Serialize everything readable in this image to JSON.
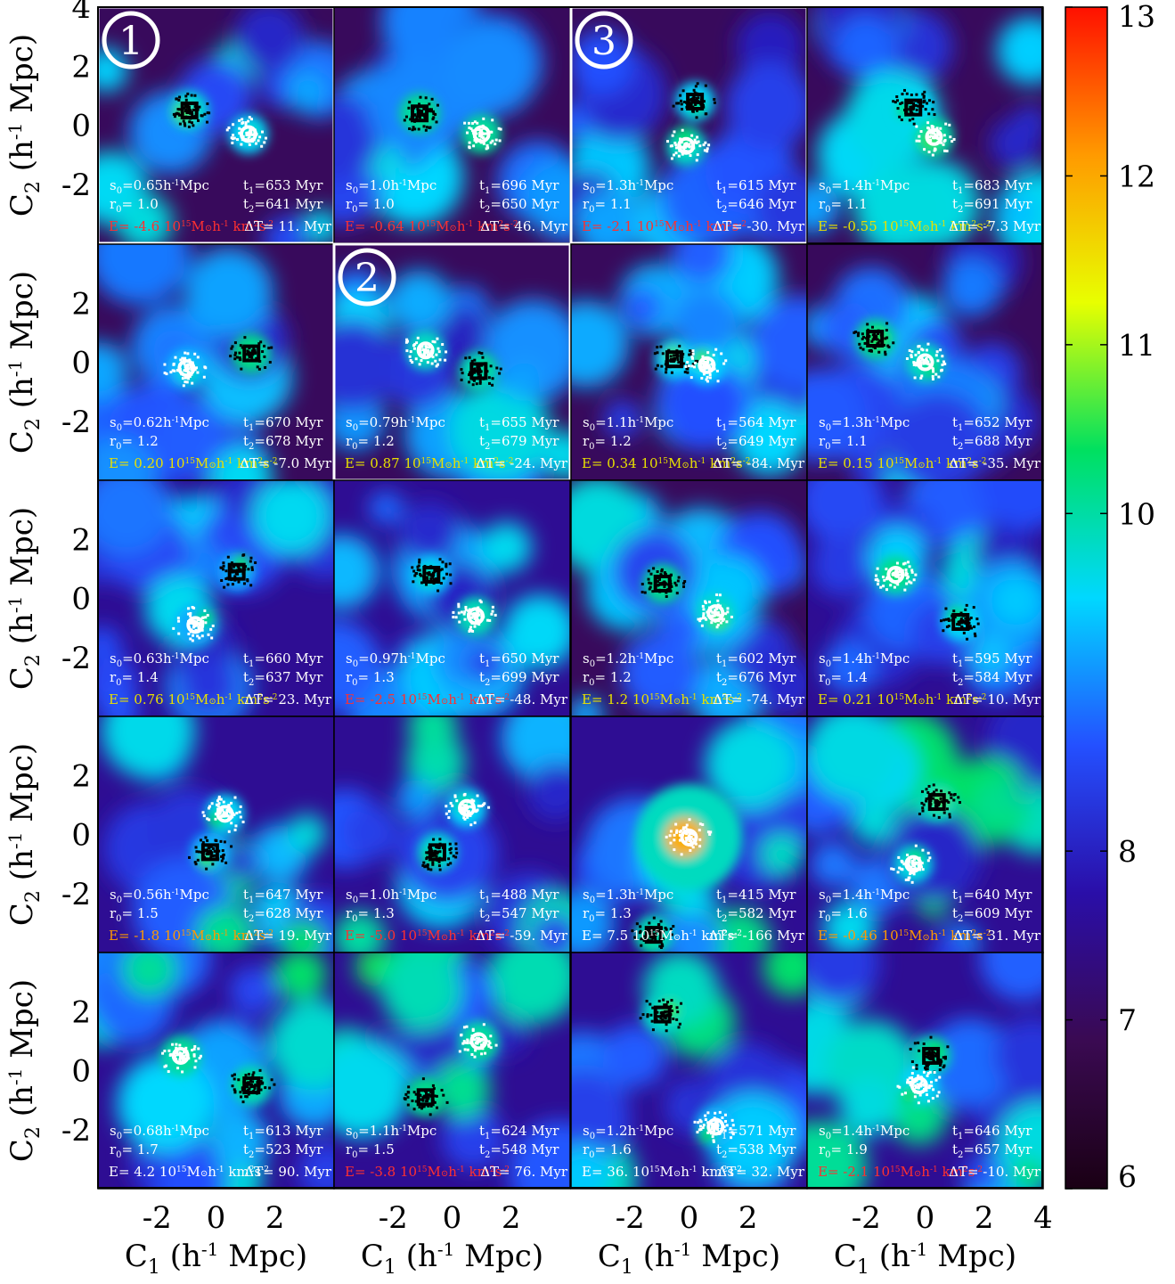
{
  "chart_data": {
    "type": "heatmap",
    "title": "",
    "xlabel": "C1 (h-1 Mpc)",
    "ylabel": "C2 (h-1 Mpc)",
    "xlim": [
      -4,
      4
    ],
    "ylim": [
      -4,
      4
    ],
    "grid": false,
    "x_ticks": [
      -2,
      0,
      2
    ],
    "x_ticks_last_panel": [
      -2,
      0,
      2,
      4
    ],
    "y_ticks_top_row": [
      4,
      2,
      0,
      -2
    ],
    "y_ticks": [
      2,
      0,
      -2
    ],
    "colorbar": {
      "min": 6,
      "max": 13,
      "ticks": [
        "13",
        "12",
        "11",
        "10",
        "8",
        "7",
        "6"
      ],
      "colormap": "jet-like (dark purple → blue → cyan → green → yellow → red)",
      "stops": [
        "#1a0014",
        "#3a0a52",
        "#2a0ea8",
        "#2450ff",
        "#00d8ff",
        "#00e060",
        "#e8ff00",
        "#ff9a00",
        "#ff1000"
      ]
    },
    "marker_legend": {
      "black_square": "halo 1 center (black particles)",
      "white_circle": "halo 2 center (white particles)"
    },
    "annotation_colors": {
      "white": "#ffffff",
      "red": "#ff3030",
      "yellow": "#e8e000",
      "orange": "#ff9a00"
    },
    "panels": [
      {
        "s0": "0.65",
        "r0": "1.0",
        "t1": "653",
        "t2": "641",
        "E": "-4.6",
        "dT": "11.",
        "e_color": "red",
        "badge": "1",
        "highlight": true,
        "sq": [
          -0.9,
          0.5
        ],
        "ci": [
          1.1,
          -0.3
        ]
      },
      {
        "s0": "1.0",
        "r0": "1.0",
        "t1": "696",
        "t2": "650",
        "E": "-0.64",
        "dT": "46.",
        "e_color": "red",
        "badge": "",
        "highlight": false,
        "sq": [
          -1.1,
          0.4
        ],
        "ci": [
          1.0,
          -0.3
        ]
      },
      {
        "s0": "1.3",
        "r0": "1.1",
        "t1": "615",
        "t2": "646",
        "E": "-2.1",
        "dT": "-30.",
        "e_color": "red",
        "badge": "3",
        "highlight": true,
        "sq": [
          0.2,
          0.8
        ],
        "ci": [
          -0.1,
          -0.7
        ]
      },
      {
        "s0": "1.4",
        "r0": "1.1",
        "t1": "683",
        "t2": "691",
        "E": "-0.55",
        "dT": "-7.3",
        "e_color": "yellow",
        "badge": "",
        "highlight": false,
        "sq": [
          -0.4,
          0.6
        ],
        "ci": [
          0.3,
          -0.4
        ]
      },
      {
        "s0": "0.62",
        "r0": "1.2",
        "t1": "670",
        "t2": "678",
        "E": "0.20",
        "dT": "-7.0",
        "e_color": "yellow",
        "badge": "",
        "highlight": false,
        "sq": [
          1.2,
          0.3
        ],
        "ci": [
          -1.0,
          -0.2
        ]
      },
      {
        "s0": "0.79",
        "r0": "1.2",
        "t1": "655",
        "t2": "679",
        "E": "0.87",
        "dT": "-24.",
        "e_color": "yellow",
        "badge": "2",
        "highlight": true,
        "sq": [
          0.9,
          -0.3
        ],
        "ci": [
          -0.9,
          0.4
        ]
      },
      {
        "s0": "1.1",
        "r0": "1.2",
        "t1": "564",
        "t2": "649",
        "E": "0.34",
        "dT": "-84.",
        "e_color": "yellow",
        "badge": "",
        "highlight": false,
        "sq": [
          -0.5,
          0.1
        ],
        "ci": [
          0.6,
          -0.1
        ]
      },
      {
        "s0": "1.3",
        "r0": "1.1",
        "t1": "652",
        "t2": "688",
        "E": "0.15",
        "dT": "-35.",
        "e_color": "yellow",
        "badge": "",
        "highlight": false,
        "sq": [
          -1.7,
          0.8
        ],
        "ci": [
          0.0,
          0.0
        ]
      },
      {
        "s0": "0.63",
        "r0": "1.4",
        "t1": "660",
        "t2": "637",
        "E": "0.76",
        "dT": "23.",
        "e_color": "yellow",
        "badge": "",
        "highlight": false,
        "sq": [
          0.7,
          0.9
        ],
        "ci": [
          -0.7,
          -0.9
        ]
      },
      {
        "s0": "0.97",
        "r0": "1.3",
        "t1": "650",
        "t2": "699",
        "E": "-2.5",
        "dT": "-48.",
        "e_color": "red",
        "badge": "",
        "highlight": false,
        "sq": [
          -0.7,
          0.8
        ],
        "ci": [
          0.8,
          -0.6
        ]
      },
      {
        "s0": "1.2",
        "r0": "1.2",
        "t1": "602",
        "t2": "676",
        "E": "1.2",
        "dT": "-74.",
        "e_color": "yellow",
        "badge": "",
        "highlight": false,
        "sq": [
          -0.9,
          0.5
        ],
        "ci": [
          0.9,
          -0.5
        ]
      },
      {
        "s0": "1.4",
        "r0": "1.4",
        "t1": "595",
        "t2": "584",
        "E": "0.21",
        "dT": "10.",
        "e_color": "yellow",
        "badge": "",
        "highlight": false,
        "sq": [
          1.2,
          -0.8
        ],
        "ci": [
          -1.0,
          0.8
        ]
      },
      {
        "s0": "0.56",
        "r0": "1.5",
        "t1": "647",
        "t2": "628",
        "E": "-1.8",
        "dT": "19.",
        "e_color": "orange",
        "badge": "",
        "highlight": false,
        "sq": [
          -0.2,
          -0.6
        ],
        "ci": [
          0.3,
          0.7
        ]
      },
      {
        "s0": "1.0",
        "r0": "1.3",
        "t1": "488",
        "t2": "547",
        "E": "-5.0",
        "dT": "-59.",
        "e_color": "red",
        "badge": "",
        "highlight": false,
        "sq": [
          -0.5,
          -0.6
        ],
        "ci": [
          0.5,
          0.9
        ]
      },
      {
        "s0": "1.3",
        "r0": "1.3",
        "t1": "415",
        "t2": "582",
        "E": "7.5",
        "dT": "-166",
        "e_color": "white",
        "badge": "",
        "highlight": false,
        "sq": [
          -1.2,
          -3.4
        ],
        "ci": [
          0.0,
          -0.1
        ]
      },
      {
        "s0": "1.4",
        "r0": "1.6",
        "t1": "640",
        "t2": "609",
        "E": "-0.46",
        "dT": "31.",
        "e_color": "orange",
        "badge": "",
        "highlight": false,
        "sq": [
          0.4,
          1.1
        ],
        "ci": [
          -0.4,
          -1.0
        ]
      },
      {
        "s0": "0.68",
        "r0": "1.7",
        "t1": "613",
        "t2": "523",
        "E": "4.2",
        "dT": "90.",
        "e_color": "white",
        "badge": "",
        "highlight": false,
        "sq": [
          1.2,
          -0.5
        ],
        "ci": [
          -1.2,
          0.5
        ]
      },
      {
        "s0": "1.1",
        "r0": "1.5",
        "t1": "624",
        "t2": "548",
        "E": "-3.8",
        "dT": "76.",
        "e_color": "red",
        "badge": "",
        "highlight": false,
        "sq": [
          -0.9,
          -0.9
        ],
        "ci": [
          0.9,
          1.0
        ]
      },
      {
        "s0": "1.2",
        "r0": "1.6",
        "t1": "571",
        "t2": "538",
        "E": "36.",
        "dT": "32.",
        "e_color": "white",
        "badge": "",
        "highlight": false,
        "sq": [
          -0.9,
          1.9
        ],
        "ci": [
          0.9,
          -1.9
        ]
      },
      {
        "s0": "1.4",
        "r0": "1.9",
        "t1": "646",
        "t2": "657",
        "E": "-2.1",
        "dT": "-10.",
        "e_color": "red",
        "badge": "",
        "highlight": false,
        "sq": [
          0.2,
          0.5
        ],
        "ci": [
          -0.2,
          -0.5
        ]
      }
    ]
  }
}
